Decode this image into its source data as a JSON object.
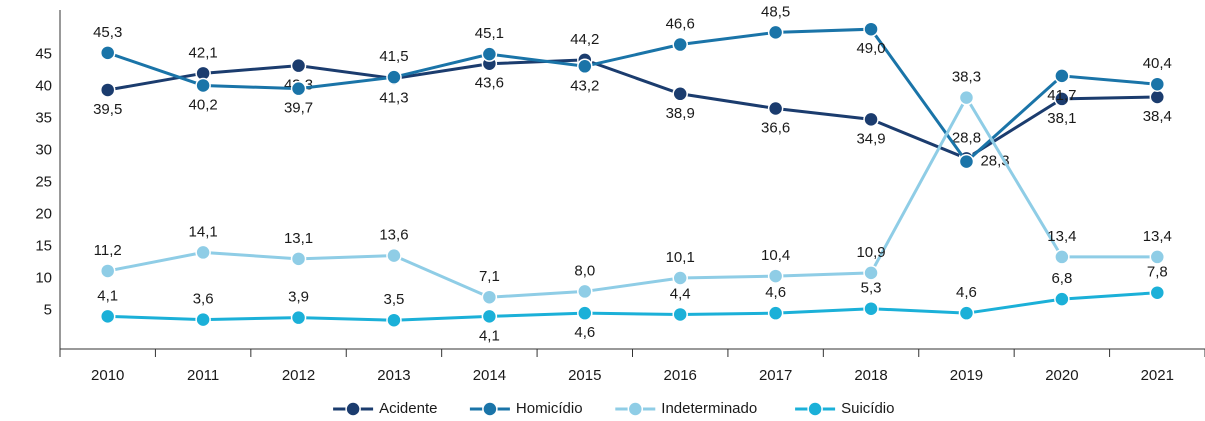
{
  "chart_data": {
    "type": "line",
    "categories": [
      "2010",
      "2011",
      "2012",
      "2013",
      "2014",
      "2015",
      "2016",
      "2017",
      "2018",
      "2019",
      "2020",
      "2021"
    ],
    "series": [
      {
        "name": "Acidente",
        "color": "#1b3c6e",
        "values": [
          39.5,
          42.1,
          43.3,
          41.3,
          43.6,
          44.2,
          38.9,
          36.6,
          34.9,
          28.8,
          38.1,
          38.4
        ],
        "value_labels": [
          "39,5",
          "42,1",
          "43,3",
          "41,3",
          "43,6",
          "44,2",
          "38,9",
          "36,6",
          "34,9",
          "28,8",
          "38,1",
          "38,4"
        ]
      },
      {
        "name": "Homicídio",
        "color": "#1a74a8",
        "values": [
          45.3,
          40.2,
          39.7,
          41.5,
          45.1,
          43.2,
          46.6,
          48.5,
          49.0,
          28.3,
          41.7,
          40.4
        ],
        "value_labels": [
          "45,3",
          "40,2",
          "39,7",
          "41,5",
          "45,1",
          "43,2",
          "46,6",
          "48,5",
          "49,0",
          "28,3",
          "41,7",
          "40,4"
        ]
      },
      {
        "name": "Indeterminado",
        "color": "#8fcde6",
        "values": [
          11.2,
          14.1,
          13.1,
          13.6,
          7.1,
          8.0,
          10.1,
          10.4,
          10.9,
          38.3,
          13.4,
          13.4
        ],
        "value_labels": [
          "11,2",
          "14,1",
          "13,1",
          "13,6",
          "7,1",
          "8,0",
          "10,1",
          "10,4",
          "10,9",
          "38,3",
          "13,4",
          "13,4"
        ]
      },
      {
        "name": "Suicídio",
        "color": "#1bb0d8",
        "values": [
          4.1,
          3.6,
          3.9,
          3.5,
          4.1,
          4.6,
          4.4,
          4.6,
          5.3,
          4.6,
          6.8,
          7.8
        ],
        "value_labels": [
          "4,1",
          "3,6",
          "3,9",
          "3,5",
          "4,1",
          "4,6",
          "4,4",
          "4,6",
          "5,3",
          "4,6",
          "6,8",
          "7,8"
        ]
      }
    ],
    "ylim": [
      -1,
      52
    ],
    "yticks": [
      5,
      10,
      15,
      20,
      25,
      30,
      35,
      40,
      45
    ],
    "grid": false,
    "legend": "bottom"
  }
}
